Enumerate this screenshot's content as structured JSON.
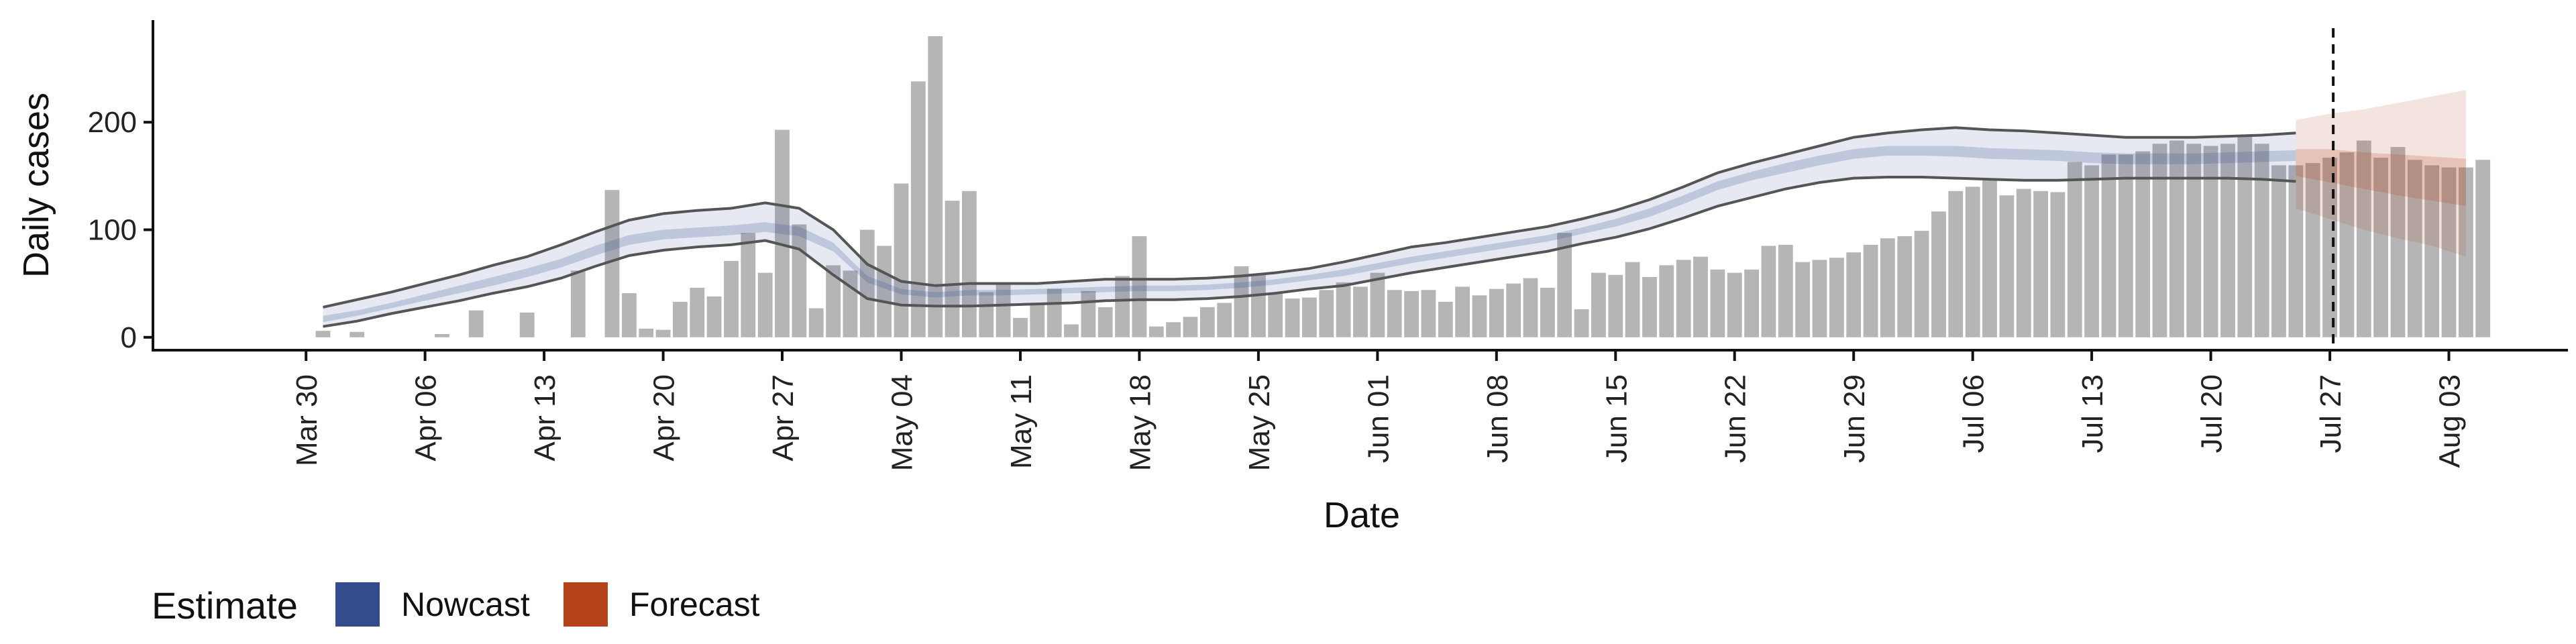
{
  "chart_data": {
    "type": "bar",
    "title": "",
    "xlabel": "Date",
    "ylabel": "Daily cases",
    "ylim": [
      -12,
      295
    ],
    "y_ticks": [
      0,
      100,
      200
    ],
    "y_tick_labels": [
      "0",
      "100",
      "200"
    ],
    "x_range_days": [
      -9,
      133
    ],
    "x_tick_days": [
      0,
      7,
      14,
      21,
      28,
      35,
      42,
      49,
      56,
      63,
      70,
      77,
      84,
      91,
      98,
      105,
      112,
      119,
      126
    ],
    "x_tick_labels": [
      "Mar 30",
      "Apr 06",
      "Apr 13",
      "Apr 20",
      "Apr 27",
      "May 04",
      "May 11",
      "May 18",
      "May 25",
      "Jun 01",
      "Jun 08",
      "Jun 15",
      "Jun 22",
      "Jun 29",
      "Jul 06",
      "Jul 13",
      "Jul 20",
      "Jul 27",
      "Aug 03"
    ],
    "reference_line_day": 119.2,
    "bars": {
      "start_day": 1,
      "values": [
        6,
        0,
        5,
        0,
        0,
        0,
        0,
        3,
        0,
        25,
        0,
        0,
        23,
        0,
        0,
        62,
        0,
        137,
        41,
        8,
        7,
        33,
        46,
        38,
        71,
        97,
        60,
        193,
        105,
        27,
        67,
        62,
        100,
        85,
        143,
        238,
        280,
        127,
        136,
        42,
        50,
        18,
        31,
        45,
        12,
        43,
        28,
        57,
        94,
        10,
        14,
        19,
        28,
        32,
        66,
        58,
        41,
        36,
        37,
        44,
        51,
        47,
        60,
        44,
        43,
        44,
        33,
        47,
        39,
        45,
        50,
        55,
        46,
        97,
        26,
        60,
        58,
        70,
        56,
        67,
        72,
        75,
        63,
        60,
        63,
        85,
        86,
        70,
        72,
        74,
        79,
        86,
        92,
        94,
        99,
        117,
        136,
        140,
        148,
        132,
        138,
        136,
        135,
        163,
        160,
        170,
        170,
        173,
        180,
        183,
        180,
        178,
        180,
        188,
        180,
        160,
        160,
        162,
        167,
        172,
        183,
        167,
        177,
        165,
        160,
        158,
        158,
        165
      ]
    },
    "series": [
      {
        "name": "Nowcast",
        "color": "#334D8C",
        "days": [
          1,
          3,
          5,
          7,
          9,
          11,
          13,
          15,
          17,
          19,
          21,
          23,
          25,
          27,
          29,
          31,
          33,
          35,
          37,
          39,
          41,
          43,
          45,
          47,
          49,
          51,
          53,
          55,
          57,
          59,
          61,
          63,
          65,
          67,
          69,
          71,
          73,
          75,
          77,
          79,
          81,
          83,
          85,
          87,
          89,
          91,
          93,
          95,
          97,
          99,
          101,
          103,
          105,
          107,
          109,
          111,
          113,
          115,
          117
        ],
        "outer_upper": [
          28,
          35,
          42,
          50,
          58,
          67,
          75,
          86,
          98,
          109,
          115,
          118,
          120,
          125,
          120,
          100,
          68,
          52,
          48,
          50,
          50,
          50,
          52,
          54,
          54,
          54,
          55,
          57,
          60,
          64,
          70,
          77,
          84,
          88,
          93,
          98,
          103,
          110,
          118,
          128,
          140,
          153,
          162,
          170,
          178,
          186,
          190,
          193,
          195,
          193,
          192,
          190,
          188,
          186,
          186,
          186,
          187,
          188,
          190
        ],
        "inner_upper": [
          20,
          25,
          32,
          40,
          48,
          56,
          64,
          73,
          85,
          95,
          100,
          102,
          104,
          107,
          103,
          88,
          57,
          45,
          42,
          44,
          44,
          45,
          46,
          47,
          48,
          48,
          49,
          51,
          54,
          58,
          63,
          69,
          75,
          80,
          85,
          90,
          95,
          102,
          110,
          120,
          132,
          145,
          154,
          162,
          169,
          175,
          178,
          178,
          178,
          176,
          175,
          174,
          172,
          171,
          171,
          171,
          172,
          173,
          174
        ],
        "inner_lower": [
          14,
          20,
          27,
          34,
          41,
          48,
          56,
          65,
          76,
          86,
          91,
          93,
          95,
          98,
          94,
          80,
          51,
          40,
          37,
          39,
          39,
          40,
          41,
          42,
          43,
          43,
          44,
          46,
          49,
          53,
          57,
          63,
          69,
          74,
          79,
          84,
          89,
          96,
          103,
          112,
          124,
          137,
          146,
          153,
          160,
          166,
          169,
          169,
          168,
          166,
          165,
          164,
          162,
          161,
          161,
          161,
          162,
          163,
          164
        ],
        "outer_lower": [
          10,
          15,
          22,
          28,
          34,
          41,
          47,
          55,
          66,
          76,
          81,
          84,
          86,
          90,
          82,
          58,
          36,
          30,
          29,
          29,
          30,
          31,
          32,
          34,
          35,
          35,
          36,
          38,
          41,
          45,
          48,
          54,
          60,
          65,
          70,
          75,
          80,
          87,
          93,
          101,
          111,
          122,
          130,
          138,
          144,
          148,
          149,
          149,
          148,
          147,
          146,
          146,
          147,
          148,
          148,
          148,
          148,
          147,
          145
        ]
      },
      {
        "name": "Forecast",
        "color": "#B4431A",
        "days": [
          117,
          119,
          121,
          123,
          125,
          127
        ],
        "outer_upper": [
          202,
          208,
          212,
          218,
          224,
          230
        ],
        "inner_upper": [
          175,
          175,
          172,
          170,
          168,
          166
        ],
        "inner_lower": [
          150,
          144,
          138,
          132,
          127,
          122
        ],
        "outer_lower": [
          120,
          110,
          100,
          92,
          85,
          75
        ]
      }
    ],
    "legend": {
      "title": "Estimate",
      "position": "bottom-left",
      "items": [
        {
          "label": "Nowcast",
          "color": "#334D8C"
        },
        {
          "label": "Forecast",
          "color": "#B4431A"
        }
      ]
    }
  }
}
